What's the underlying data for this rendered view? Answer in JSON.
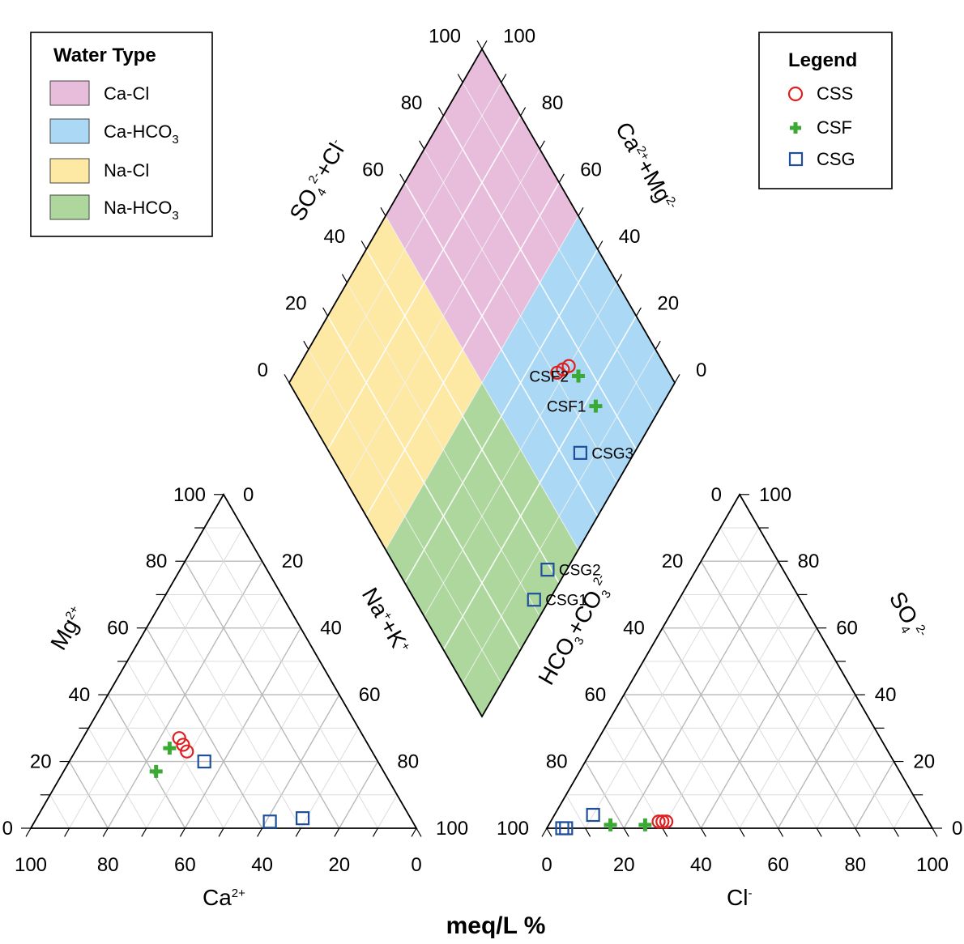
{
  "chart_data": {
    "type": "scatter",
    "subtype": "piper-diagram",
    "footer": "meq/L %",
    "tick_labels": [
      "0",
      "20",
      "40",
      "60",
      "80",
      "100"
    ],
    "axes": {
      "cation_x": "Ca",
      "cation_x_sup": "2+",
      "cation_y": "Mg",
      "cation_y_sup": "2+",
      "cation_z": "Na",
      "cation_z_sup": "+",
      "cation_z_mid": "+K",
      "anion_x": "Cl",
      "anion_x_sup": "-",
      "anion_y": "SO",
      "anion_y_sub": "4",
      "anion_y_sup": "2-",
      "anion_z": "HCO",
      "anion_z_sub": "3",
      "anion_z_mid": "+CO",
      "anion_z_sub2": "3",
      "anion_z_sup": "2-",
      "diamond_left": "SO",
      "diamond_left_sub": "4",
      "diamond_left_sup": "2-",
      "diamond_left_mid": "+Cl",
      "diamond_left_sup2": "-",
      "diamond_right": "Ca",
      "diamond_right_sup": "2+",
      "diamond_right_mid": "+Mg",
      "diamond_right_sup2": "2-"
    },
    "water_type_legend": {
      "title": "Water Type",
      "items": [
        {
          "label": "Ca-Cl",
          "color": "#e7bddb"
        },
        {
          "label": "Ca-HCO",
          "sub": "3",
          "color": "#aad8f5"
        },
        {
          "label": "Na-Cl",
          "color": "#fde8a4"
        },
        {
          "label": "Na-HCO",
          "sub": "3",
          "color": "#add79d"
        }
      ]
    },
    "legend": {
      "title": "Legend",
      "items": [
        {
          "label": "CSS",
          "marker": "circle",
          "color": "#e02020"
        },
        {
          "label": "CSF",
          "marker": "plus",
          "color": "#3aaa35"
        },
        {
          "label": "CSG",
          "marker": "square",
          "color": "#1f4e9c"
        }
      ]
    },
    "series": [
      {
        "name": "CSS",
        "points": [
          {
            "ca": 48,
            "mg": 27,
            "na": 25,
            "cl": 28,
            "so4": 2,
            "hco3": 70
          },
          {
            "ca": 48,
            "mg": 25,
            "na": 27,
            "cl": 29,
            "so4": 2,
            "hco3": 69
          },
          {
            "ca": 48,
            "mg": 23,
            "na": 29,
            "cl": 30,
            "so4": 2,
            "hco3": 68
          }
        ]
      },
      {
        "name": "CSF",
        "points": [
          {
            "label": "CSF2",
            "ca": 52,
            "mg": 24,
            "na": 24,
            "cl": 25,
            "so4": 1,
            "hco3": 74
          },
          {
            "label": "CSF1",
            "ca": 59,
            "mg": 17,
            "na": 24,
            "cl": 16,
            "so4": 1,
            "hco3": 83
          }
        ]
      },
      {
        "name": "CSG",
        "points": [
          {
            "label": "CSG3",
            "ca": 45,
            "mg": 20,
            "na": 35,
            "cl": 10,
            "so4": 4,
            "hco3": 86
          },
          {
            "label": "CSG2",
            "ca": 37,
            "mg": 2,
            "na": 61,
            "cl": 5,
            "so4": 0,
            "hco3": 95
          },
          {
            "label": "CSG1",
            "ca": 28,
            "mg": 3,
            "na": 69,
            "cl": 4,
            "so4": 0,
            "hco3": 96
          }
        ]
      }
    ]
  }
}
